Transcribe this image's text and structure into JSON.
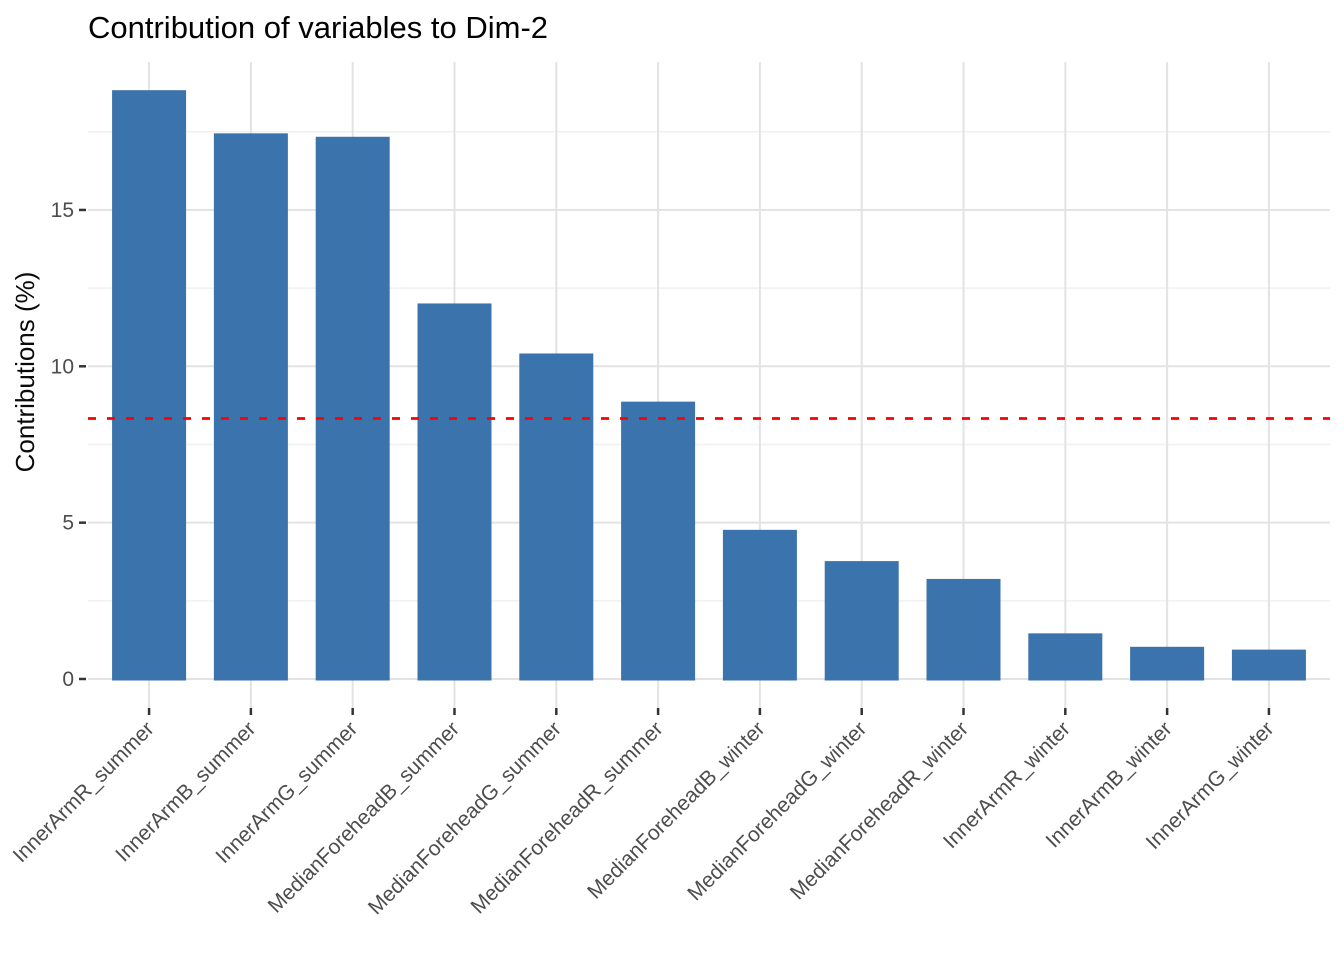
{
  "chart_data": {
    "type": "bar",
    "title": "Contribution of variables to Dim-2",
    "xlabel": "",
    "ylabel": "Contributions (%)",
    "categories": [
      "InnerArmR_summer",
      "InnerArmB_summer",
      "InnerArmG_summer",
      "MedianForeheadB_summer",
      "MedianForeheadG_summer",
      "MedianForeheadR_summer",
      "MedianForeheadB_winter",
      "MedianForeheadG_winter",
      "MedianForeheadR_winter",
      "InnerArmR_winter",
      "InnerArmB_winter",
      "InnerArmG_winter"
    ],
    "values": [
      18.83,
      17.45,
      17.34,
      12.01,
      10.41,
      8.87,
      4.77,
      3.77,
      3.2,
      1.46,
      1.03,
      0.94
    ],
    "yticks": [
      0,
      5,
      10,
      15
    ],
    "ylim": [
      0,
      19.8
    ],
    "grid": true,
    "legend": false,
    "bar_color": "#3B73AC",
    "reference_line": {
      "value": 8.33,
      "color": "#FB0006",
      "style": "dashed"
    }
  }
}
